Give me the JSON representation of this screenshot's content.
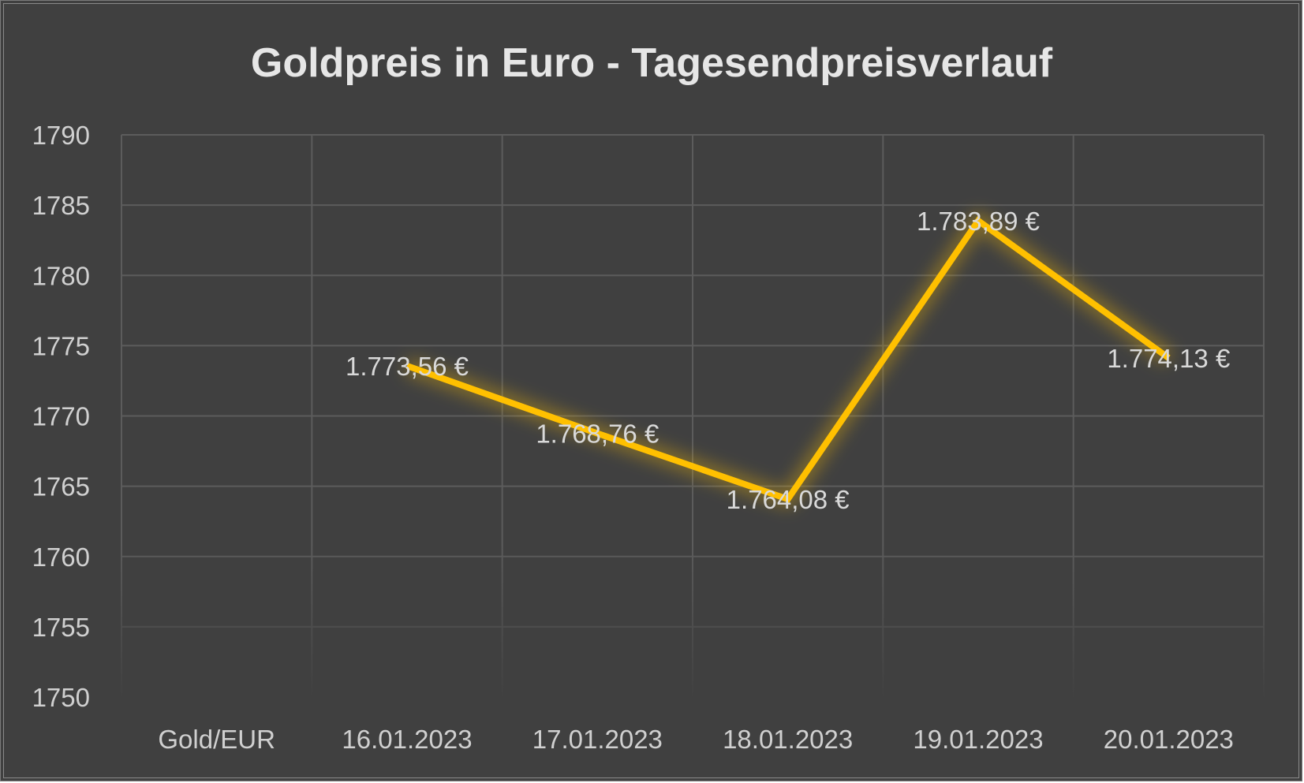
{
  "chart_data": {
    "type": "line",
    "title": "Goldpreis in Euro - Tagesendpreisverlauf",
    "xlabel": "",
    "ylabel": "",
    "categories": [
      "Gold/EUR",
      "16.01.2023",
      "17.01.2023",
      "18.01.2023",
      "19.01.2023",
      "20.01.2023"
    ],
    "series": [
      {
        "values": [
          null,
          1773.56,
          1768.76,
          1764.08,
          1783.89,
          1774.13
        ],
        "labels": [
          "",
          "1.773,56 €",
          "1.768,76 €",
          "1.764,08 €",
          "1.783,89 €",
          "1.774,13 €"
        ],
        "color": "#ffc000"
      }
    ],
    "ylim": [
      1750,
      1790
    ],
    "yticks": [
      "1790",
      "1785",
      "1780",
      "1775",
      "1770",
      "1765",
      "1760",
      "1755",
      "1750"
    ],
    "grid": true,
    "legend": "none",
    "colors": {
      "background": "#404040",
      "line": "#ffc000",
      "text": "#d9d9d9"
    }
  }
}
